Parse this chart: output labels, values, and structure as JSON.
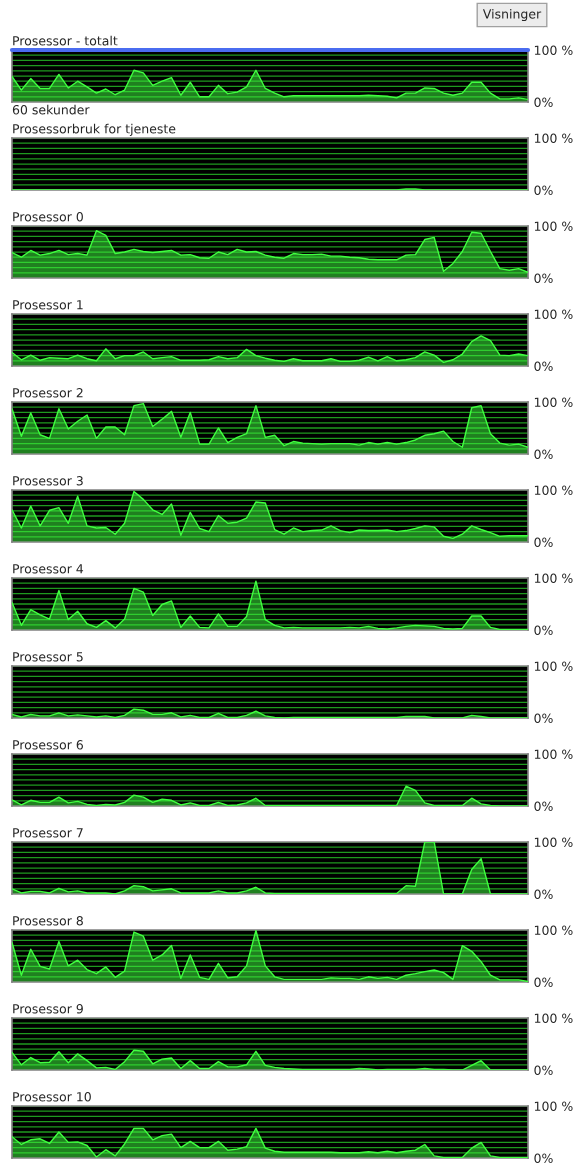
{
  "chart_data": [
    {
      "type": "area",
      "title": "Prosessor - totalt",
      "xlabel": "60 sekunder",
      "annotations": [
        "Visninger"
      ],
      "ref_lines": [
        {
          "axis": "y",
          "value": 100,
          "color": "#4a6cf0"
        }
      ],
      "categories": [
        null,
        null,
        null,
        null,
        null,
        null,
        null,
        null,
        null,
        null,
        null,
        null,
        null,
        null,
        null,
        null,
        null,
        null,
        null,
        null,
        null,
        null,
        null,
        null,
        null,
        null,
        null,
        null,
        null,
        null,
        null,
        null,
        null,
        null,
        null,
        null,
        null,
        null,
        null,
        null,
        null,
        null,
        null,
        null,
        null,
        null,
        null,
        null,
        null,
        null,
        null,
        null,
        null,
        null,
        null,
        null
      ],
      "ylim": [
        0,
        100
      ],
      "yticks": [
        {
          "value": 0,
          "label": "0%"
        },
        {
          "value": 10,
          "label": null
        },
        {
          "value": 20,
          "label": null
        },
        {
          "value": 30,
          "label": null
        },
        {
          "value": 40,
          "label": null
        },
        {
          "value": 50,
          "label": null
        },
        {
          "value": 60,
          "label": null
        },
        {
          "value": 70,
          "label": null
        },
        {
          "value": 80,
          "label": null
        },
        {
          "value": 90,
          "label": null
        },
        {
          "value": 100,
          "label": "100 %"
        }
      ],
      "tick_labels": "y",
      "grid": "y",
      "series": [
        {
          "color": "#40ff40",
          "values": [
            49,
            23,
            45,
            26,
            26,
            53,
            27,
            40,
            29,
            17,
            25,
            14,
            23,
            61,
            56,
            32,
            40,
            47,
            13,
            38,
            10,
            10,
            32,
            16,
            19,
            29,
            61,
            26,
            17,
            10,
            12,
            12,
            12,
            12,
            12,
            12,
            12,
            12,
            13,
            12,
            11,
            8,
            17,
            17,
            27,
            26,
            17,
            13,
            17,
            38,
            38,
            17,
            6,
            6,
            8,
            5
          ]
        }
      ]
    },
    {
      "type": "area",
      "title": "Prosessorbruk for tjeneste",
      "categories": [
        null,
        null,
        null,
        null,
        null,
        null,
        null,
        null,
        null,
        null,
        null,
        null,
        null,
        null,
        null,
        null,
        null,
        null,
        null,
        null,
        null,
        null,
        null,
        null,
        null,
        null,
        null,
        null,
        null,
        null,
        null,
        null,
        null,
        null,
        null,
        null,
        null,
        null,
        null,
        null,
        null,
        null,
        null,
        null,
        null,
        null,
        null,
        null,
        null,
        null,
        null,
        null,
        null,
        null,
        null,
        null
      ],
      "ylim": [
        0,
        100
      ],
      "yticks": [
        {
          "value": 0,
          "label": "0%"
        },
        {
          "value": 10,
          "label": null
        },
        {
          "value": 20,
          "label": null
        },
        {
          "value": 30,
          "label": null
        },
        {
          "value": 40,
          "label": null
        },
        {
          "value": 50,
          "label": null
        },
        {
          "value": 60,
          "label": null
        },
        {
          "value": 70,
          "label": null
        },
        {
          "value": 80,
          "label": null
        },
        {
          "value": 90,
          "label": null
        },
        {
          "value": 100,
          "label": "100 %"
        }
      ],
      "tick_labels": "y",
      "grid": "y",
      "series": [
        {
          "color": "#40ff40",
          "values": [
            0,
            0,
            0,
            0,
            0,
            0,
            0,
            0,
            0,
            0,
            0,
            0,
            0,
            0,
            0,
            0,
            0,
            0,
            0,
            0,
            0,
            0,
            0,
            0,
            0,
            0,
            0,
            0,
            0,
            0,
            0,
            0,
            0,
            0,
            0,
            0,
            0,
            0,
            0,
            0,
            0,
            0,
            2,
            2,
            0,
            0,
            0,
            0,
            0,
            0,
            0,
            0,
            0,
            0,
            0,
            0
          ]
        }
      ]
    },
    {
      "type": "area",
      "title": "Prosessor 0",
      "categories": [
        null,
        null,
        null,
        null,
        null,
        null,
        null,
        null,
        null,
        null,
        null,
        null,
        null,
        null,
        null,
        null,
        null,
        null,
        null,
        null,
        null,
        null,
        null,
        null,
        null,
        null,
        null,
        null,
        null,
        null,
        null,
        null,
        null,
        null,
        null,
        null,
        null,
        null,
        null,
        null,
        null,
        null,
        null,
        null,
        null,
        null,
        null,
        null,
        null,
        null,
        null,
        null,
        null,
        null,
        null,
        null
      ],
      "ylim": [
        0,
        100
      ],
      "yticks": [
        {
          "value": 0,
          "label": "0%"
        },
        {
          "value": 10,
          "label": null
        },
        {
          "value": 20,
          "label": null
        },
        {
          "value": 30,
          "label": null
        },
        {
          "value": 40,
          "label": null
        },
        {
          "value": 50,
          "label": null
        },
        {
          "value": 60,
          "label": null
        },
        {
          "value": 70,
          "label": null
        },
        {
          "value": 80,
          "label": null
        },
        {
          "value": 90,
          "label": null
        },
        {
          "value": 100,
          "label": "100 %"
        }
      ],
      "tick_labels": "y",
      "grid": "y",
      "series": [
        {
          "color": "#40ff40",
          "values": [
            49,
            40,
            53,
            44,
            47,
            53,
            45,
            47,
            44,
            91,
            82,
            47,
            50,
            55,
            51,
            49,
            51,
            53,
            44,
            45,
            39,
            38,
            50,
            45,
            55,
            50,
            51,
            44,
            40,
            38,
            47,
            45,
            45,
            46,
            42,
            42,
            40,
            39,
            36,
            35,
            35,
            35,
            44,
            45,
            74,
            78,
            13,
            28,
            51,
            88,
            86,
            51,
            18,
            15,
            18,
            11
          ]
        }
      ]
    },
    {
      "type": "area",
      "title": "Prosessor 1",
      "categories": [
        null,
        null,
        null,
        null,
        null,
        null,
        null,
        null,
        null,
        null,
        null,
        null,
        null,
        null,
        null,
        null,
        null,
        null,
        null,
        null,
        null,
        null,
        null,
        null,
        null,
        null,
        null,
        null,
        null,
        null,
        null,
        null,
        null,
        null,
        null,
        null,
        null,
        null,
        null,
        null,
        null,
        null,
        null,
        null,
        null,
        null,
        null,
        null,
        null,
        null,
        null,
        null,
        null,
        null,
        null,
        null
      ],
      "ylim": [
        0,
        100
      ],
      "yticks": [
        {
          "value": 0,
          "label": "0%"
        },
        {
          "value": 10,
          "label": null
        },
        {
          "value": 20,
          "label": null
        },
        {
          "value": 30,
          "label": null
        },
        {
          "value": 40,
          "label": null
        },
        {
          "value": 50,
          "label": null
        },
        {
          "value": 60,
          "label": null
        },
        {
          "value": 70,
          "label": null
        },
        {
          "value": 80,
          "label": null
        },
        {
          "value": 90,
          "label": null
        },
        {
          "value": 100,
          "label": "100 %"
        }
      ],
      "tick_labels": "y",
      "grid": "y",
      "series": [
        {
          "color": "#40ff40",
          "values": [
            26,
            12,
            21,
            11,
            16,
            15,
            14,
            21,
            14,
            10,
            33,
            14,
            20,
            20,
            27,
            14,
            16,
            18,
            11,
            11,
            11,
            12,
            18,
            14,
            16,
            32,
            20,
            15,
            11,
            9,
            14,
            10,
            10,
            10,
            14,
            9,
            9,
            11,
            17,
            10,
            18,
            10,
            12,
            16,
            27,
            21,
            7,
            12,
            23,
            47,
            58,
            49,
            21,
            20,
            23,
            20
          ]
        }
      ]
    },
    {
      "type": "area",
      "title": "Prosessor 2",
      "categories": [
        null,
        null,
        null,
        null,
        null,
        null,
        null,
        null,
        null,
        null,
        null,
        null,
        null,
        null,
        null,
        null,
        null,
        null,
        null,
        null,
        null,
        null,
        null,
        null,
        null,
        null,
        null,
        null,
        null,
        null,
        null,
        null,
        null,
        null,
        null,
        null,
        null,
        null,
        null,
        null,
        null,
        null,
        null,
        null,
        null,
        null,
        null,
        null,
        null,
        null,
        null,
        null,
        null,
        null,
        null,
        null
      ],
      "ylim": [
        0,
        100
      ],
      "yticks": [
        {
          "value": 0,
          "label": "0%"
        },
        {
          "value": 10,
          "label": null
        },
        {
          "value": 20,
          "label": null
        },
        {
          "value": 30,
          "label": null
        },
        {
          "value": 40,
          "label": null
        },
        {
          "value": 50,
          "label": null
        },
        {
          "value": 60,
          "label": null
        },
        {
          "value": 70,
          "label": null
        },
        {
          "value": 80,
          "label": null
        },
        {
          "value": 90,
          "label": null
        },
        {
          "value": 100,
          "label": "100 %"
        }
      ],
      "tick_labels": "y",
      "grid": "y",
      "series": [
        {
          "color": "#40ff40",
          "values": [
            87,
            34,
            79,
            37,
            30,
            87,
            48,
            63,
            75,
            30,
            52,
            52,
            37,
            93,
            97,
            53,
            67,
            82,
            32,
            80,
            19,
            19,
            50,
            22,
            32,
            39,
            93,
            32,
            36,
            16,
            24,
            21,
            20,
            19,
            20,
            20,
            20,
            17,
            22,
            19,
            22,
            19,
            22,
            27,
            36,
            39,
            44,
            24,
            13,
            89,
            93,
            39,
            21,
            17,
            19,
            13
          ]
        }
      ]
    },
    {
      "type": "area",
      "title": "Prosessor 3",
      "categories": [
        null,
        null,
        null,
        null,
        null,
        null,
        null,
        null,
        null,
        null,
        null,
        null,
        null,
        null,
        null,
        null,
        null,
        null,
        null,
        null,
        null,
        null,
        null,
        null,
        null,
        null,
        null,
        null,
        null,
        null,
        null,
        null,
        null,
        null,
        null,
        null,
        null,
        null,
        null,
        null,
        null,
        null,
        null,
        null,
        null,
        null,
        null,
        null,
        null,
        null,
        null,
        null,
        null,
        null,
        null,
        null
      ],
      "ylim": [
        0,
        100
      ],
      "yticks": [
        {
          "value": 0,
          "label": "0%"
        },
        {
          "value": 10,
          "label": null
        },
        {
          "value": 20,
          "label": null
        },
        {
          "value": 30,
          "label": null
        },
        {
          "value": 40,
          "label": null
        },
        {
          "value": 50,
          "label": null
        },
        {
          "value": 60,
          "label": null
        },
        {
          "value": 70,
          "label": null
        },
        {
          "value": 80,
          "label": null
        },
        {
          "value": 90,
          "label": null
        },
        {
          "value": 100,
          "label": "100 %"
        }
      ],
      "tick_labels": "y",
      "grid": "y",
      "series": [
        {
          "color": "#40ff40",
          "values": [
            62,
            27,
            69,
            31,
            61,
            66,
            36,
            88,
            31,
            27,
            28,
            15,
            36,
            97,
            82,
            62,
            53,
            73,
            13,
            57,
            26,
            20,
            51,
            36,
            38,
            46,
            77,
            75,
            24,
            15,
            27,
            20,
            22,
            23,
            31,
            22,
            18,
            23,
            22,
            22,
            23,
            20,
            22,
            26,
            31,
            29,
            11,
            7,
            15,
            31,
            24,
            18,
            11,
            12,
            12,
            12
          ]
        }
      ]
    },
    {
      "type": "area",
      "title": "Prosessor 4",
      "categories": [
        null,
        null,
        null,
        null,
        null,
        null,
        null,
        null,
        null,
        null,
        null,
        null,
        null,
        null,
        null,
        null,
        null,
        null,
        null,
        null,
        null,
        null,
        null,
        null,
        null,
        null,
        null,
        null,
        null,
        null,
        null,
        null,
        null,
        null,
        null,
        null,
        null,
        null,
        null,
        null,
        null,
        null,
        null,
        null,
        null,
        null,
        null,
        null,
        null,
        null,
        null,
        null,
        null,
        null,
        null,
        null
      ],
      "ylim": [
        0,
        100
      ],
      "yticks": [
        {
          "value": 0,
          "label": "0%"
        },
        {
          "value": 10,
          "label": null
        },
        {
          "value": 20,
          "label": null
        },
        {
          "value": 30,
          "label": null
        },
        {
          "value": 40,
          "label": null
        },
        {
          "value": 50,
          "label": null
        },
        {
          "value": 60,
          "label": null
        },
        {
          "value": 70,
          "label": null
        },
        {
          "value": 80,
          "label": null
        },
        {
          "value": 90,
          "label": null
        },
        {
          "value": 100,
          "label": "100 %"
        }
      ],
      "tick_labels": "y",
      "grid": "y",
      "series": [
        {
          "color": "#40ff40",
          "values": [
            53,
            9,
            39,
            29,
            21,
            76,
            20,
            36,
            12,
            5,
            18,
            4,
            21,
            80,
            73,
            28,
            49,
            56,
            5,
            27,
            5,
            4,
            31,
            7,
            7,
            26,
            94,
            20,
            9,
            4,
            5,
            4,
            4,
            4,
            4,
            4,
            5,
            4,
            7,
            3,
            2,
            4,
            7,
            9,
            8,
            7,
            3,
            2,
            3,
            27,
            27,
            5,
            1,
            1,
            1,
            1
          ]
        }
      ]
    },
    {
      "type": "area",
      "title": "Prosessor 5",
      "categories": [
        null,
        null,
        null,
        null,
        null,
        null,
        null,
        null,
        null,
        null,
        null,
        null,
        null,
        null,
        null,
        null,
        null,
        null,
        null,
        null,
        null,
        null,
        null,
        null,
        null,
        null,
        null,
        null,
        null,
        null,
        null,
        null,
        null,
        null,
        null,
        null,
        null,
        null,
        null,
        null,
        null,
        null,
        null,
        null,
        null,
        null,
        null,
        null,
        null,
        null,
        null,
        null,
        null,
        null,
        null,
        null
      ],
      "ylim": [
        0,
        100
      ],
      "yticks": [
        {
          "value": 0,
          "label": "0%"
        },
        {
          "value": 10,
          "label": null
        },
        {
          "value": 20,
          "label": null
        },
        {
          "value": 30,
          "label": null
        },
        {
          "value": 40,
          "label": null
        },
        {
          "value": 50,
          "label": null
        },
        {
          "value": 60,
          "label": null
        },
        {
          "value": 70,
          "label": null
        },
        {
          "value": 80,
          "label": null
        },
        {
          "value": 90,
          "label": null
        },
        {
          "value": 100,
          "label": "100 %"
        }
      ],
      "tick_labels": "y",
      "grid": "y",
      "series": [
        {
          "color": "#40ff40",
          "values": [
            7,
            2,
            7,
            4,
            4,
            10,
            4,
            6,
            4,
            2,
            4,
            1,
            5,
            17,
            15,
            7,
            7,
            10,
            2,
            5,
            1,
            1,
            9,
            1,
            1,
            5,
            13,
            4,
            1,
            0,
            1,
            1,
            1,
            1,
            1,
            1,
            1,
            1,
            1,
            1,
            1,
            1,
            3,
            3,
            3,
            0,
            0,
            0,
            0,
            5,
            3,
            0,
            0,
            0,
            0,
            0
          ]
        }
      ]
    },
    {
      "type": "area",
      "title": "Prosessor 6",
      "categories": [
        null,
        null,
        null,
        null,
        null,
        null,
        null,
        null,
        null,
        null,
        null,
        null,
        null,
        null,
        null,
        null,
        null,
        null,
        null,
        null,
        null,
        null,
        null,
        null,
        null,
        null,
        null,
        null,
        null,
        null,
        null,
        null,
        null,
        null,
        null,
        null,
        null,
        null,
        null,
        null,
        null,
        null,
        null,
        null,
        null,
        null,
        null,
        null,
        null,
        null,
        null,
        null,
        null,
        null,
        null,
        null
      ],
      "ylim": [
        0,
        100
      ],
      "yticks": [
        {
          "value": 0,
          "label": "0%"
        },
        {
          "value": 10,
          "label": null
        },
        {
          "value": 20,
          "label": null
        },
        {
          "value": 30,
          "label": null
        },
        {
          "value": 40,
          "label": null
        },
        {
          "value": 50,
          "label": null
        },
        {
          "value": 60,
          "label": null
        },
        {
          "value": 70,
          "label": null
        },
        {
          "value": 80,
          "label": null
        },
        {
          "value": 90,
          "label": null
        },
        {
          "value": 100,
          "label": "100 %"
        }
      ],
      "tick_labels": "y",
      "grid": "y",
      "series": [
        {
          "color": "#40ff40",
          "values": [
            12,
            2,
            11,
            7,
            7,
            17,
            6,
            9,
            3,
            1,
            3,
            2,
            7,
            21,
            17,
            7,
            13,
            11,
            2,
            6,
            1,
            1,
            7,
            1,
            2,
            6,
            15,
            1,
            1,
            1,
            1,
            1,
            1,
            1,
            1,
            1,
            1,
            1,
            1,
            1,
            1,
            1,
            38,
            30,
            6,
            1,
            1,
            1,
            1,
            15,
            4,
            1,
            0,
            0,
            0,
            0
          ]
        }
      ]
    },
    {
      "type": "area",
      "title": "Prosessor 7",
      "categories": [
        null,
        null,
        null,
        null,
        null,
        null,
        null,
        null,
        null,
        null,
        null,
        null,
        null,
        null,
        null,
        null,
        null,
        null,
        null,
        null,
        null,
        null,
        null,
        null,
        null,
        null,
        null,
        null,
        null,
        null,
        null,
        null,
        null,
        null,
        null,
        null,
        null,
        null,
        null,
        null,
        null,
        null,
        null,
        null,
        null,
        null,
        null,
        null,
        null,
        null,
        null,
        null,
        null,
        null,
        null,
        null
      ],
      "ylim": [
        0,
        100
      ],
      "yticks": [
        {
          "value": 0,
          "label": "0%"
        },
        {
          "value": 10,
          "label": null
        },
        {
          "value": 20,
          "label": null
        },
        {
          "value": 30,
          "label": null
        },
        {
          "value": 40,
          "label": null
        },
        {
          "value": 50,
          "label": null
        },
        {
          "value": 60,
          "label": null
        },
        {
          "value": 70,
          "label": null
        },
        {
          "value": 80,
          "label": null
        },
        {
          "value": 90,
          "label": null
        },
        {
          "value": 100,
          "label": "100 %"
        }
      ],
      "tick_labels": "y",
      "grid": "y",
      "series": [
        {
          "color": "#40ff40",
          "values": [
            10,
            2,
            5,
            5,
            2,
            11,
            4,
            6,
            2,
            2,
            2,
            0,
            6,
            16,
            14,
            6,
            8,
            10,
            2,
            2,
            2,
            2,
            6,
            2,
            2,
            6,
            13,
            2,
            1,
            1,
            1,
            1,
            1,
            1,
            1,
            1,
            1,
            1,
            1,
            1,
            1,
            1,
            16,
            15,
            100,
            100,
            0,
            0,
            0,
            47,
            68,
            0,
            0,
            0,
            0,
            0
          ]
        }
      ]
    },
    {
      "type": "area",
      "title": "Prosessor 8",
      "categories": [
        null,
        null,
        null,
        null,
        null,
        null,
        null,
        null,
        null,
        null,
        null,
        null,
        null,
        null,
        null,
        null,
        null,
        null,
        null,
        null,
        null,
        null,
        null,
        null,
        null,
        null,
        null,
        null,
        null,
        null,
        null,
        null,
        null,
        null,
        null,
        null,
        null,
        null,
        null,
        null,
        null,
        null,
        null,
        null,
        null,
        null,
        null,
        null,
        null,
        null,
        null,
        null,
        null,
        null,
        null,
        null
      ],
      "ylim": [
        0,
        100
      ],
      "yticks": [
        {
          "value": 0,
          "label": "0%"
        },
        {
          "value": 10,
          "label": null
        },
        {
          "value": 20,
          "label": null
        },
        {
          "value": 30,
          "label": null
        },
        {
          "value": 40,
          "label": null
        },
        {
          "value": 50,
          "label": null
        },
        {
          "value": 60,
          "label": null
        },
        {
          "value": 70,
          "label": null
        },
        {
          "value": 80,
          "label": null
        },
        {
          "value": 90,
          "label": null
        },
        {
          "value": 100,
          "label": "100 %"
        }
      ],
      "tick_labels": "y",
      "grid": "y",
      "series": [
        {
          "color": "#40ff40",
          "values": [
            76,
            13,
            63,
            30,
            25,
            78,
            31,
            42,
            24,
            16,
            29,
            9,
            21,
            96,
            88,
            42,
            52,
            70,
            7,
            52,
            9,
            5,
            36,
            8,
            10,
            31,
            99,
            31,
            10,
            5,
            5,
            5,
            5,
            5,
            8,
            7,
            7,
            5,
            10,
            7,
            9,
            5,
            13,
            16,
            20,
            23,
            18,
            5,
            70,
            59,
            39,
            13,
            4,
            4,
            4,
            1
          ]
        }
      ]
    },
    {
      "type": "area",
      "title": "Prosessor 9",
      "categories": [
        null,
        null,
        null,
        null,
        null,
        null,
        null,
        null,
        null,
        null,
        null,
        null,
        null,
        null,
        null,
        null,
        null,
        null,
        null,
        null,
        null,
        null,
        null,
        null,
        null,
        null,
        null,
        null,
        null,
        null,
        null,
        null,
        null,
        null,
        null,
        null,
        null,
        null,
        null,
        null,
        null,
        null,
        null,
        null,
        null,
        null,
        null,
        null,
        null,
        null,
        null,
        null,
        null,
        null,
        null,
        null
      ],
      "ylim": [
        0,
        100
      ],
      "yticks": [
        {
          "value": 0,
          "label": "0%"
        },
        {
          "value": 10,
          "label": null
        },
        {
          "value": 20,
          "label": null
        },
        {
          "value": 30,
          "label": null
        },
        {
          "value": 40,
          "label": null
        },
        {
          "value": 50,
          "label": null
        },
        {
          "value": 60,
          "label": null
        },
        {
          "value": 70,
          "label": null
        },
        {
          "value": 80,
          "label": null
        },
        {
          "value": 90,
          "label": null
        },
        {
          "value": 100,
          "label": "100 %"
        }
      ],
      "tick_labels": "y",
      "grid": "y",
      "series": [
        {
          "color": "#40ff40",
          "values": [
            34,
            10,
            24,
            14,
            15,
            35,
            14,
            31,
            18,
            4,
            5,
            1,
            16,
            38,
            36,
            12,
            21,
            23,
            3,
            18,
            3,
            3,
            16,
            6,
            6,
            10,
            36,
            9,
            5,
            3,
            2,
            1,
            1,
            1,
            1,
            1,
            1,
            3,
            2,
            0,
            1,
            1,
            1,
            1,
            3,
            1,
            1,
            0,
            0,
            9,
            18,
            0,
            0,
            0,
            0,
            0
          ]
        }
      ]
    },
    {
      "type": "area",
      "title": "Prosessor 10",
      "categories": [
        null,
        null,
        null,
        null,
        null,
        null,
        null,
        null,
        null,
        null,
        null,
        null,
        null,
        null,
        null,
        null,
        null,
        null,
        null,
        null,
        null,
        null,
        null,
        null,
        null,
        null,
        null,
        null,
        null,
        null,
        null,
        null,
        null,
        null,
        null,
        null,
        null,
        null,
        null,
        null,
        null,
        null,
        null,
        null,
        null,
        null,
        null,
        null,
        null,
        null,
        null,
        null,
        null,
        null,
        null,
        null
      ],
      "ylim": [
        0,
        100
      ],
      "yticks": [
        {
          "value": 0,
          "label": "0%"
        },
        {
          "value": 10,
          "label": null
        },
        {
          "value": 20,
          "label": null
        },
        {
          "value": 30,
          "label": null
        },
        {
          "value": 40,
          "label": null
        },
        {
          "value": 50,
          "label": null
        },
        {
          "value": 60,
          "label": null
        },
        {
          "value": 70,
          "label": null
        },
        {
          "value": 80,
          "label": null
        },
        {
          "value": 90,
          "label": null
        },
        {
          "value": 100,
          "label": "100 %"
        }
      ],
      "tick_labels": "y",
      "grid": "y",
      "series": [
        {
          "color": "#40ff40",
          "values": [
            41,
            26,
            35,
            37,
            28,
            50,
            30,
            31,
            24,
            2,
            16,
            4,
            27,
            57,
            57,
            35,
            43,
            46,
            20,
            32,
            20,
            20,
            32,
            15,
            17,
            22,
            57,
            19,
            13,
            11,
            11,
            11,
            11,
            11,
            11,
            10,
            10,
            10,
            12,
            10,
            13,
            10,
            13,
            15,
            26,
            4,
            1,
            1,
            1,
            19,
            30,
            4,
            1,
            1,
            1,
            1
          ]
        }
      ]
    }
  ]
}
